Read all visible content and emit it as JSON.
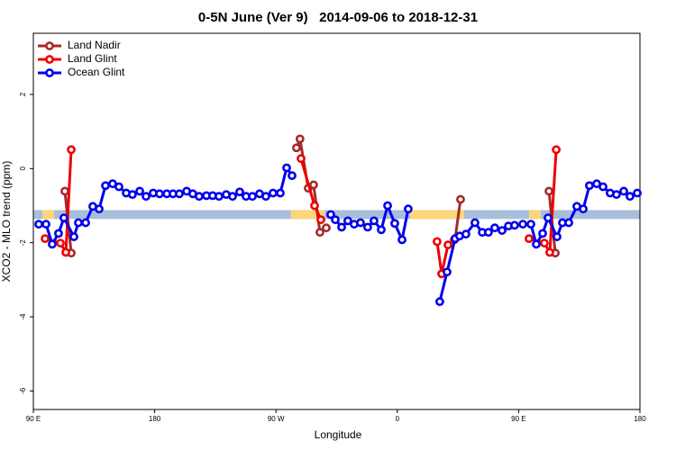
{
  "chart_data": {
    "type": "line",
    "title": "0-5N June (Ver 9)   2014-09-06 to 2018-12-31",
    "xlabel": "Longitude",
    "ylabel": "XCO2 - MLO trend (ppm)",
    "xlim": [
      90,
      540
    ],
    "ylim": [
      -6.5,
      3.65
    ],
    "xticks": [
      {
        "value": 90,
        "label": "90 E"
      },
      180,
      {
        "value": 270,
        "label": "90 W"
      },
      {
        "value": 360,
        "label": "0"
      },
      {
        "value": 450,
        "label": "90 E"
      },
      {
        "value": 540,
        "label": "180"
      }
    ],
    "yticks": [
      -6,
      -4,
      -2,
      0,
      2
    ],
    "legend": "top-left",
    "mask_band": {
      "ylim": [
        -1.36,
        -1.12
      ],
      "ocean_color": "#a8bfdc",
      "land_color": "#fdd67a",
      "land_ranges": [
        [
          96.7,
          105.4
        ],
        [
          281,
          306
        ],
        [
          369.5,
          409.6
        ],
        [
          457.7,
          466.4
        ]
      ]
    },
    "series": [
      {
        "name": "Land Nadir",
        "color": "#a52a2a",
        "x": [
          113.4,
          118.1,
          null,
          285.2,
          287.8,
          293.9,
          297.9,
          302.6,
          307.3,
          null,
          402.9,
          406.9,
          null,
          472.5,
          477.2
        ],
        "values": [
          -0.61,
          -2.28,
          null,
          0.56,
          0.8,
          -0.53,
          -0.44,
          -1.72,
          -1.6,
          null,
          -1.89,
          -0.83,
          null,
          -0.61,
          -2.28
        ]
      },
      {
        "name": "Land Glint",
        "color": "#ee0000",
        "x": [
          98.7,
          110.1,
          114.1,
          118.1,
          null,
          288.6,
          298.6,
          303.3,
          null,
          389.5,
          392.9,
          397.6,
          402.3,
          null,
          457.7,
          469.1,
          473.1,
          477.9
        ],
        "values": [
          -1.89,
          -2.01,
          -2.26,
          0.51,
          null,
          0.27,
          -1.0,
          -1.38,
          null,
          -1.97,
          -2.84,
          -2.06,
          -1.92,
          null,
          -1.89,
          -2.01,
          -2.26,
          0.51
        ]
      },
      {
        "name": "Ocean Glint",
        "color": "#0000ee",
        "x": [
          94.0,
          99.4,
          104.0,
          108.7,
          112.7,
          120.1,
          123.4,
          128.8,
          134.1,
          138.8,
          143.5,
          148.8,
          153.5,
          158.9,
          163.5,
          168.9,
          173.6,
          178.9,
          183.6,
          189.0,
          193.6,
          198.3,
          203.7,
          208.3,
          213.0,
          218.4,
          223.0,
          227.7,
          233.1,
          237.8,
          243.1,
          247.8,
          252.5,
          257.8,
          262.5,
          267.8,
          273.2,
          277.9,
          281.9,
          null,
          310.6,
          314.0,
          318.7,
          323.3,
          328.0,
          332.7,
          338.0,
          342.7,
          348.1,
          352.8,
          358.1,
          363.5,
          368.1,
          null,
          391.5,
          396.9,
          402.9,
          406.2,
          410.9,
          417.6,
          423.0,
          427.6,
          432.3,
          437.7,
          442.4,
          447.0,
          453.1,
          459.1,
          463.1,
          467.8,
          471.8,
          478.5,
          482.5,
          487.2,
          493.2,
          497.9,
          502.5,
          507.9,
          512.6,
          517.9,
          522.6,
          528.0,
          532.6,
          538.0
        ],
        "values": [
          -1.5,
          -1.5,
          -2.04,
          -1.75,
          -1.33,
          -1.84,
          -1.46,
          -1.46,
          -1.02,
          -1.09,
          -0.46,
          -0.41,
          -0.49,
          -0.66,
          -0.7,
          -0.61,
          -0.75,
          -0.66,
          -0.68,
          -0.68,
          -0.68,
          -0.68,
          -0.61,
          -0.68,
          -0.75,
          -0.73,
          -0.73,
          -0.75,
          -0.7,
          -0.75,
          -0.63,
          -0.75,
          -0.75,
          -0.68,
          -0.75,
          -0.66,
          -0.66,
          0.02,
          -0.19,
          null,
          -1.24,
          -1.38,
          -1.58,
          -1.41,
          -1.5,
          -1.46,
          -1.58,
          -1.41,
          -1.65,
          -1.0,
          -1.48,
          -1.92,
          -1.09,
          null,
          -3.59,
          -2.79,
          -1.89,
          -1.82,
          -1.77,
          -1.46,
          -1.72,
          -1.72,
          -1.6,
          -1.67,
          -1.55,
          -1.53,
          -1.5,
          -1.5,
          -2.04,
          -1.75,
          -1.33,
          -1.84,
          -1.46,
          -1.46,
          -1.02,
          -1.09,
          -0.46,
          -0.41,
          -0.49,
          -0.66,
          -0.7,
          -0.61,
          -0.75,
          -0.66
        ]
      }
    ]
  }
}
